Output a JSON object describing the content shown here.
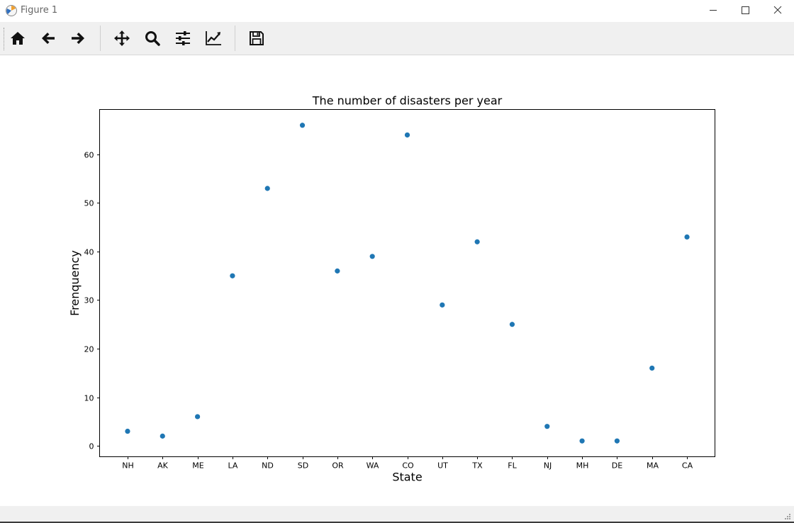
{
  "window": {
    "title": "Figure 1",
    "controls": [
      "minimize",
      "maximize",
      "close"
    ]
  },
  "toolbar": {
    "buttons": [
      {
        "name": "home",
        "icon": "home-icon"
      },
      {
        "name": "back",
        "icon": "arrow-left-icon"
      },
      {
        "name": "forward",
        "icon": "arrow-right-icon"
      },
      {
        "name": "pan",
        "icon": "move-icon"
      },
      {
        "name": "zoom",
        "icon": "search-icon"
      },
      {
        "name": "configure-subplots",
        "icon": "sliders-icon"
      },
      {
        "name": "edit-axis",
        "icon": "line-chart-icon"
      },
      {
        "name": "save",
        "icon": "save-icon"
      }
    ]
  },
  "chart_data": {
    "type": "scatter",
    "title": "The number of disasters per year",
    "xlabel": "State",
    "ylabel": "Frenquency",
    "categories": [
      "NH",
      "AK",
      "ME",
      "LA",
      "ND",
      "SD",
      "OR",
      "WA",
      "CO",
      "UT",
      "TX",
      "FL",
      "NJ",
      "MH",
      "DE",
      "MA",
      "CA"
    ],
    "values": [
      3,
      2,
      6,
      35,
      53,
      66,
      36,
      39,
      64,
      29,
      42,
      25,
      4,
      1,
      1,
      16,
      43
    ],
    "yticks": [
      0,
      10,
      20,
      30,
      40,
      50,
      60
    ],
    "ylim": [
      -2.25,
      69.25
    ],
    "grid": false,
    "color": "#1f77b4"
  }
}
